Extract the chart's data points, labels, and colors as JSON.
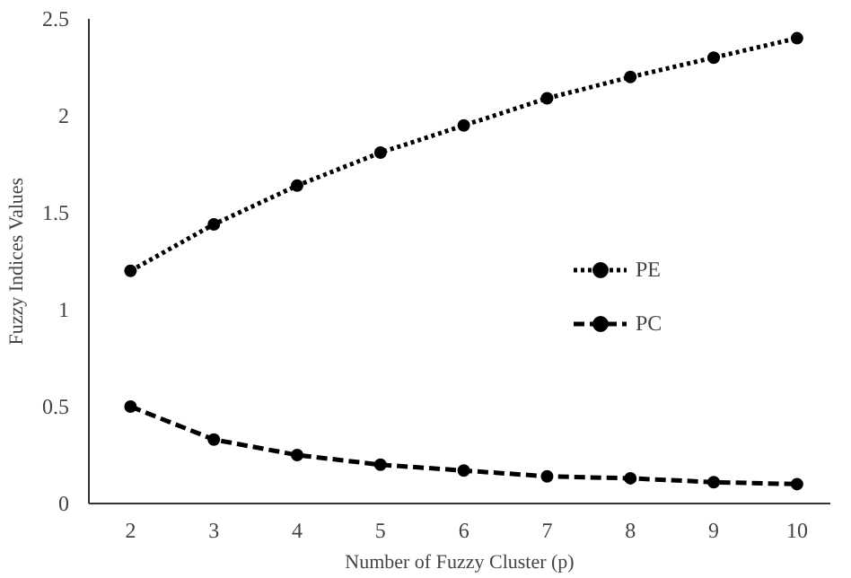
{
  "chart_data": {
    "type": "line",
    "xlabel": "Number of Fuzzy Cluster (p)",
    "ylabel": "Fuzzy Indices Values",
    "x": [
      2,
      3,
      4,
      5,
      6,
      7,
      8,
      9,
      10
    ],
    "series": [
      {
        "name": "PE",
        "color": "#000000",
        "line_style": "dotted",
        "values": [
          1.2,
          1.44,
          1.64,
          1.81,
          1.95,
          2.09,
          2.2,
          2.3,
          2.4
        ]
      },
      {
        "name": "PC",
        "color": "#000000",
        "line_style": "dashed",
        "values": [
          0.5,
          0.33,
          0.25,
          0.2,
          0.17,
          0.14,
          0.13,
          0.11,
          0.1
        ]
      }
    ],
    "xlim": [
      1.5,
      10.4
    ],
    "xticks": [
      2,
      3,
      4,
      5,
      6,
      7,
      8,
      9,
      10
    ],
    "ylim": [
      0,
      2.5
    ],
    "yticks": [
      0,
      0.5,
      1,
      1.5,
      2,
      2.5
    ],
    "grid": false,
    "legend": "right",
    "marker": "circle"
  }
}
